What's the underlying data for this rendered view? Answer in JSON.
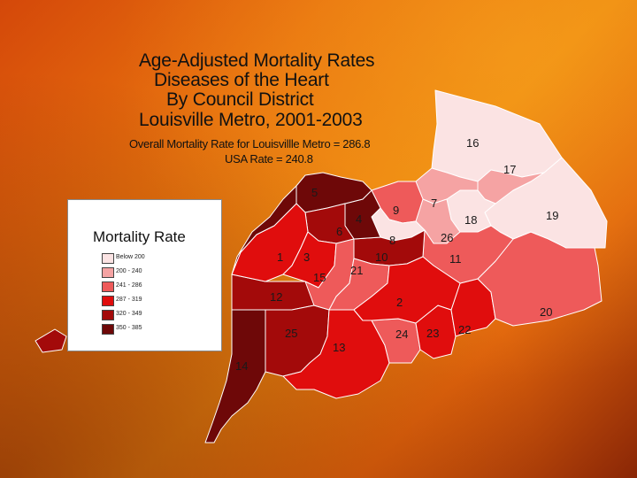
{
  "title": {
    "line1": "Age-Adjusted Mortality Rates",
    "line2": "Diseases of the Heart",
    "line3": "By Council District",
    "line4": "Louisville Metro, 2001-2003"
  },
  "subtitle": {
    "overall": "Overall Mortality Rate for Louisvillle Metro = 286.8",
    "usa": "USA Rate = 240.8"
  },
  "legend": {
    "title": "Mortality Rate",
    "items": [
      {
        "label": "Below 200",
        "color": "#fbe3e3"
      },
      {
        "label": "200 - 240",
        "color": "#f5a3a3"
      },
      {
        "label": "241 - 286",
        "color": "#ee5a5a"
      },
      {
        "label": "287 - 319",
        "color": "#e00d0d"
      },
      {
        "label": "320 - 349",
        "color": "#a30a0a"
      },
      {
        "label": "350 - 385",
        "color": "#6e0808"
      }
    ]
  },
  "districts": [
    {
      "id": "1",
      "class": "287 - 319"
    },
    {
      "id": "2",
      "class": "287 - 319"
    },
    {
      "id": "3",
      "class": "287 - 319"
    },
    {
      "id": "4",
      "class": "350 - 385"
    },
    {
      "id": "5",
      "class": "350 - 385"
    },
    {
      "id": "6",
      "class": "320 - 349"
    },
    {
      "id": "7",
      "class": "200 - 240"
    },
    {
      "id": "8",
      "class": "Below 200"
    },
    {
      "id": "9",
      "class": "241 - 286"
    },
    {
      "id": "10",
      "class": "320 - 349"
    },
    {
      "id": "11",
      "class": "241 - 286"
    },
    {
      "id": "12",
      "class": "320 - 349"
    },
    {
      "id": "13",
      "class": "287 - 319"
    },
    {
      "id": "14",
      "class": "350 - 385"
    },
    {
      "id": "15",
      "class": "241 - 286"
    },
    {
      "id": "16",
      "class": "Below 200"
    },
    {
      "id": "17",
      "class": "200 - 240"
    },
    {
      "id": "18",
      "class": "Below 200"
    },
    {
      "id": "19",
      "class": "Below 200"
    },
    {
      "id": "20",
      "class": "241 - 286"
    },
    {
      "id": "21",
      "class": "241 - 286"
    },
    {
      "id": "22",
      "class": "287 - 319"
    },
    {
      "id": "23",
      "class": "287 - 319"
    },
    {
      "id": "24",
      "class": "241 - 286"
    },
    {
      "id": "25",
      "class": "320 - 349"
    },
    {
      "id": "26",
      "class": "200 - 240"
    }
  ],
  "colors": {
    "background": "#e8720e",
    "map_border": "#ffffff"
  }
}
